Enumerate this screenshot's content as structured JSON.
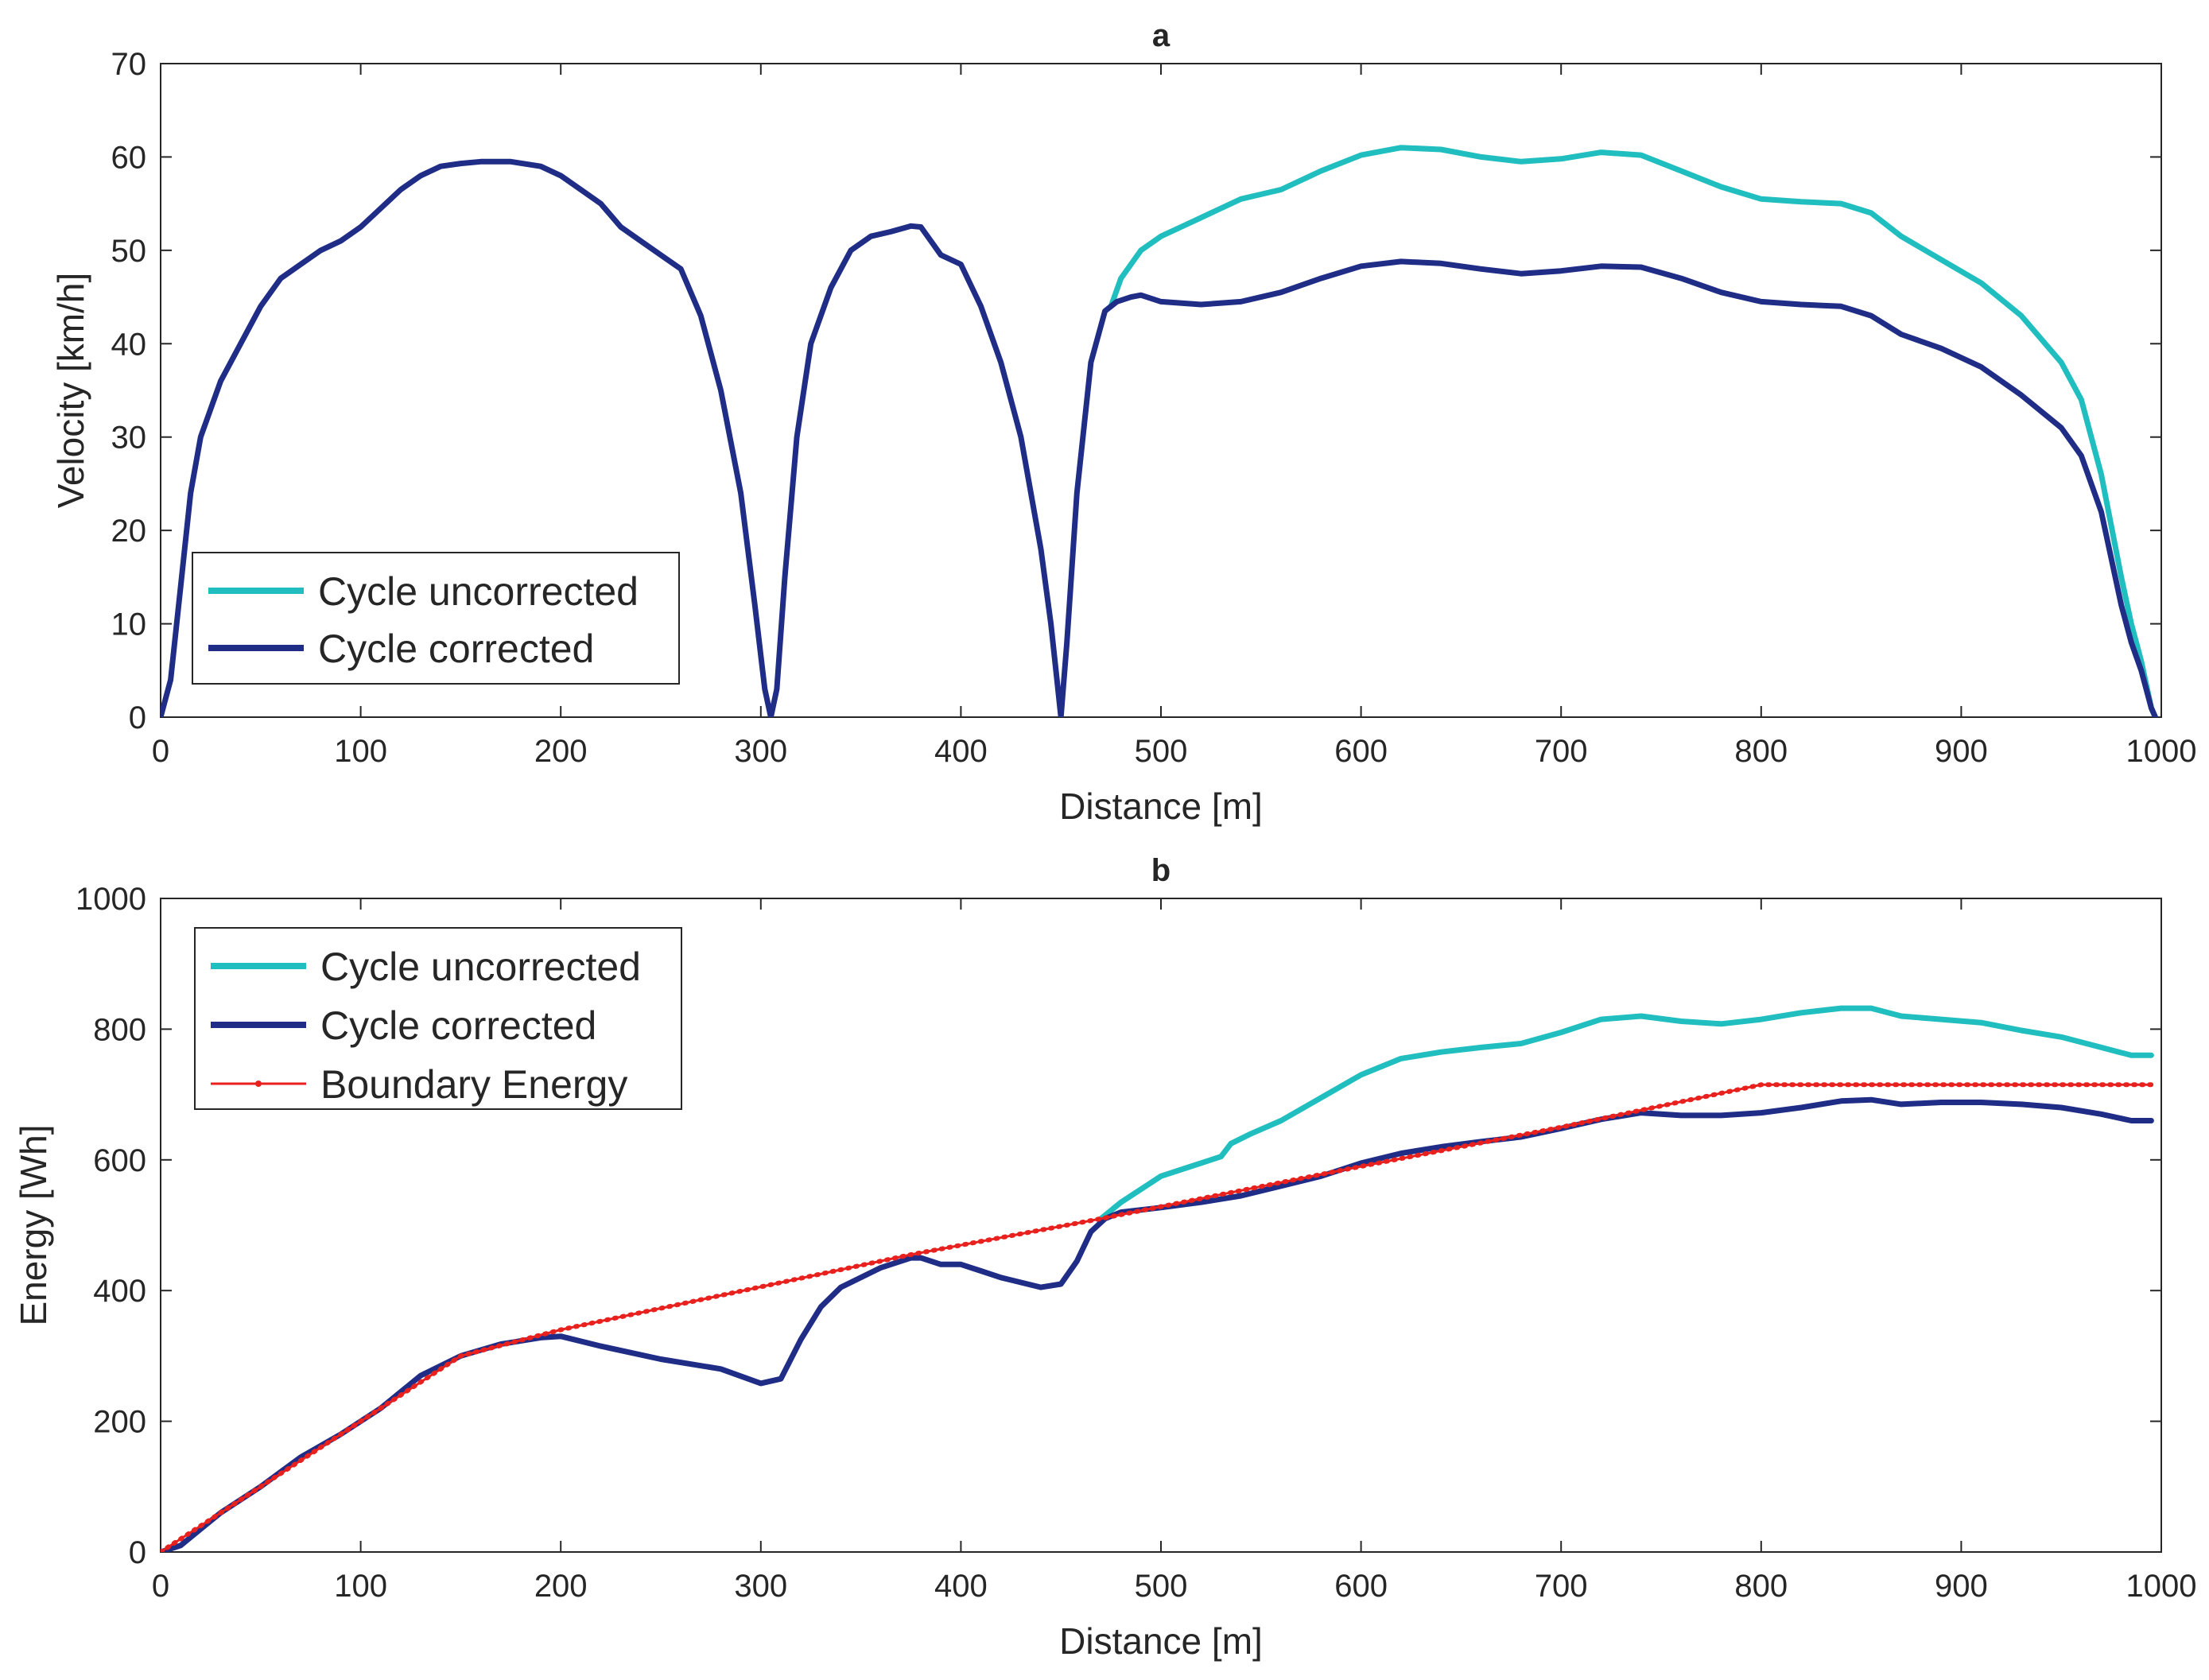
{
  "chart_data": [
    {
      "type": "line",
      "title": "a",
      "xlabel": "Distance [m]",
      "ylabel": "Velocity [km/h]",
      "xlim": [
        0,
        1000
      ],
      "ylim": [
        0,
        70
      ],
      "xticks": [
        0,
        100,
        200,
        300,
        400,
        500,
        600,
        700,
        800,
        900,
        1000
      ],
      "yticks": [
        0,
        10,
        20,
        30,
        40,
        50,
        60,
        70
      ],
      "grid": false,
      "legend_position": "bottom-left",
      "series": [
        {
          "name": "Cycle uncorrected",
          "color": "#21BEC0",
          "x": [
            475,
            480,
            490,
            500,
            510,
            520,
            530,
            540,
            550,
            560,
            580,
            600,
            620,
            640,
            660,
            680,
            700,
            720,
            740,
            760,
            780,
            800,
            820,
            840,
            855,
            870,
            890,
            910,
            930,
            950,
            960,
            970,
            980,
            985,
            990,
            995,
            997
          ],
          "y": [
            44,
            47,
            50,
            51.5,
            52.5,
            53.5,
            54.5,
            55.5,
            56,
            56.5,
            58.5,
            60.2,
            61,
            60.8,
            60,
            59.5,
            59.8,
            60.5,
            60.2,
            58.5,
            56.8,
            55.5,
            55.2,
            55,
            54,
            51.5,
            49,
            46.5,
            43,
            38,
            34,
            26,
            15,
            10,
            6,
            1,
            0
          ]
        },
        {
          "name": "Cycle corrected",
          "color": "#1F2D86",
          "x": [
            0,
            5,
            10,
            15,
            20,
            30,
            40,
            50,
            60,
            70,
            80,
            90,
            100,
            110,
            120,
            130,
            140,
            150,
            160,
            175,
            190,
            200,
            210,
            220,
            230,
            240,
            250,
            260,
            270,
            280,
            290,
            297,
            302,
            305,
            308,
            312,
            318,
            325,
            335,
            345,
            355,
            365,
            375,
            380,
            385,
            390,
            400,
            410,
            420,
            430,
            440,
            445,
            448,
            450,
            453,
            458,
            465,
            472,
            478,
            485,
            490,
            500,
            520,
            540,
            560,
            580,
            600,
            620,
            640,
            660,
            680,
            700,
            720,
            740,
            760,
            780,
            800,
            820,
            840,
            855,
            870,
            890,
            910,
            930,
            950,
            960,
            970,
            980,
            985,
            990,
            995,
            997
          ],
          "y": [
            0,
            4,
            14,
            24,
            30,
            36,
            40,
            44,
            47,
            48.5,
            50,
            51,
            52.5,
            54.5,
            56.5,
            58,
            59,
            59.3,
            59.5,
            59.5,
            59,
            58,
            56.5,
            55,
            52.5,
            51,
            49.5,
            48,
            43,
            35,
            24,
            12,
            3,
            0,
            3,
            15,
            30,
            40,
            46,
            50,
            51.5,
            52,
            52.6,
            52.5,
            51,
            49.5,
            48.5,
            44,
            38,
            30,
            18,
            10,
            4,
            0,
            8,
            24,
            38,
            43.5,
            44.5,
            45,
            45.2,
            44.5,
            44.2,
            44.5,
            45.5,
            47,
            48.3,
            48.8,
            48.6,
            48,
            47.5,
            47.8,
            48.3,
            48.2,
            47,
            45.5,
            44.5,
            44.2,
            44,
            43,
            41,
            39.5,
            37.5,
            34.5,
            31,
            28,
            22,
            12,
            8,
            5,
            1,
            0
          ]
        }
      ]
    },
    {
      "type": "line",
      "title": "b",
      "xlabel": "Distance [m]",
      "ylabel": "Energy [Wh]",
      "xlim": [
        0,
        1000
      ],
      "ylim": [
        0,
        1000
      ],
      "xticks": [
        0,
        100,
        200,
        300,
        400,
        500,
        600,
        700,
        800,
        900,
        1000
      ],
      "yticks": [
        0,
        200,
        400,
        600,
        800,
        1000
      ],
      "grid": false,
      "legend_position": "top-left",
      "series": [
        {
          "name": "Cycle uncorrected",
          "color": "#21BEC0",
          "x": [
            470,
            480,
            490,
            500,
            515,
            525,
            530,
            535,
            545,
            560,
            580,
            600,
            620,
            640,
            660,
            680,
            700,
            720,
            740,
            760,
            780,
            800,
            820,
            840,
            855,
            870,
            890,
            910,
            930,
            950,
            970,
            985,
            995
          ],
          "y": [
            510,
            535,
            555,
            575,
            590,
            600,
            605,
            625,
            640,
            660,
            695,
            730,
            755,
            765,
            772,
            778,
            795,
            815,
            820,
            812,
            808,
            815,
            825,
            832,
            832,
            820,
            815,
            810,
            798,
            788,
            772,
            760,
            760
          ]
        },
        {
          "name": "Cycle corrected",
          "color": "#1F2D86",
          "x": [
            0,
            10,
            20,
            30,
            50,
            70,
            90,
            110,
            130,
            150,
            170,
            190,
            200,
            220,
            250,
            280,
            300,
            310,
            320,
            330,
            340,
            360,
            375,
            380,
            390,
            400,
            410,
            420,
            440,
            450,
            458,
            465,
            472,
            480,
            500,
            520,
            540,
            560,
            580,
            600,
            620,
            640,
            660,
            680,
            700,
            720,
            740,
            760,
            780,
            800,
            820,
            840,
            855,
            870,
            890,
            910,
            930,
            950,
            970,
            985,
            995
          ],
          "y": [
            0,
            10,
            35,
            60,
            100,
            145,
            180,
            220,
            270,
            300,
            318,
            328,
            330,
            315,
            295,
            280,
            258,
            265,
            325,
            375,
            405,
            435,
            450,
            450,
            440,
            440,
            430,
            420,
            405,
            410,
            445,
            490,
            510,
            520,
            527,
            535,
            545,
            560,
            575,
            595,
            610,
            620,
            628,
            635,
            648,
            662,
            672,
            668,
            668,
            672,
            680,
            690,
            692,
            685,
            688,
            688,
            685,
            680,
            670,
            660,
            660
          ]
        },
        {
          "name": "Boundary Energy",
          "color": "#E8211E",
          "dotted": true,
          "x": [
            0,
            150,
            200,
            375,
            470,
            600,
            700,
            800,
            995
          ],
          "y": [
            0,
            300,
            340,
            455,
            510,
            590,
            650,
            715,
            715
          ]
        }
      ]
    }
  ]
}
